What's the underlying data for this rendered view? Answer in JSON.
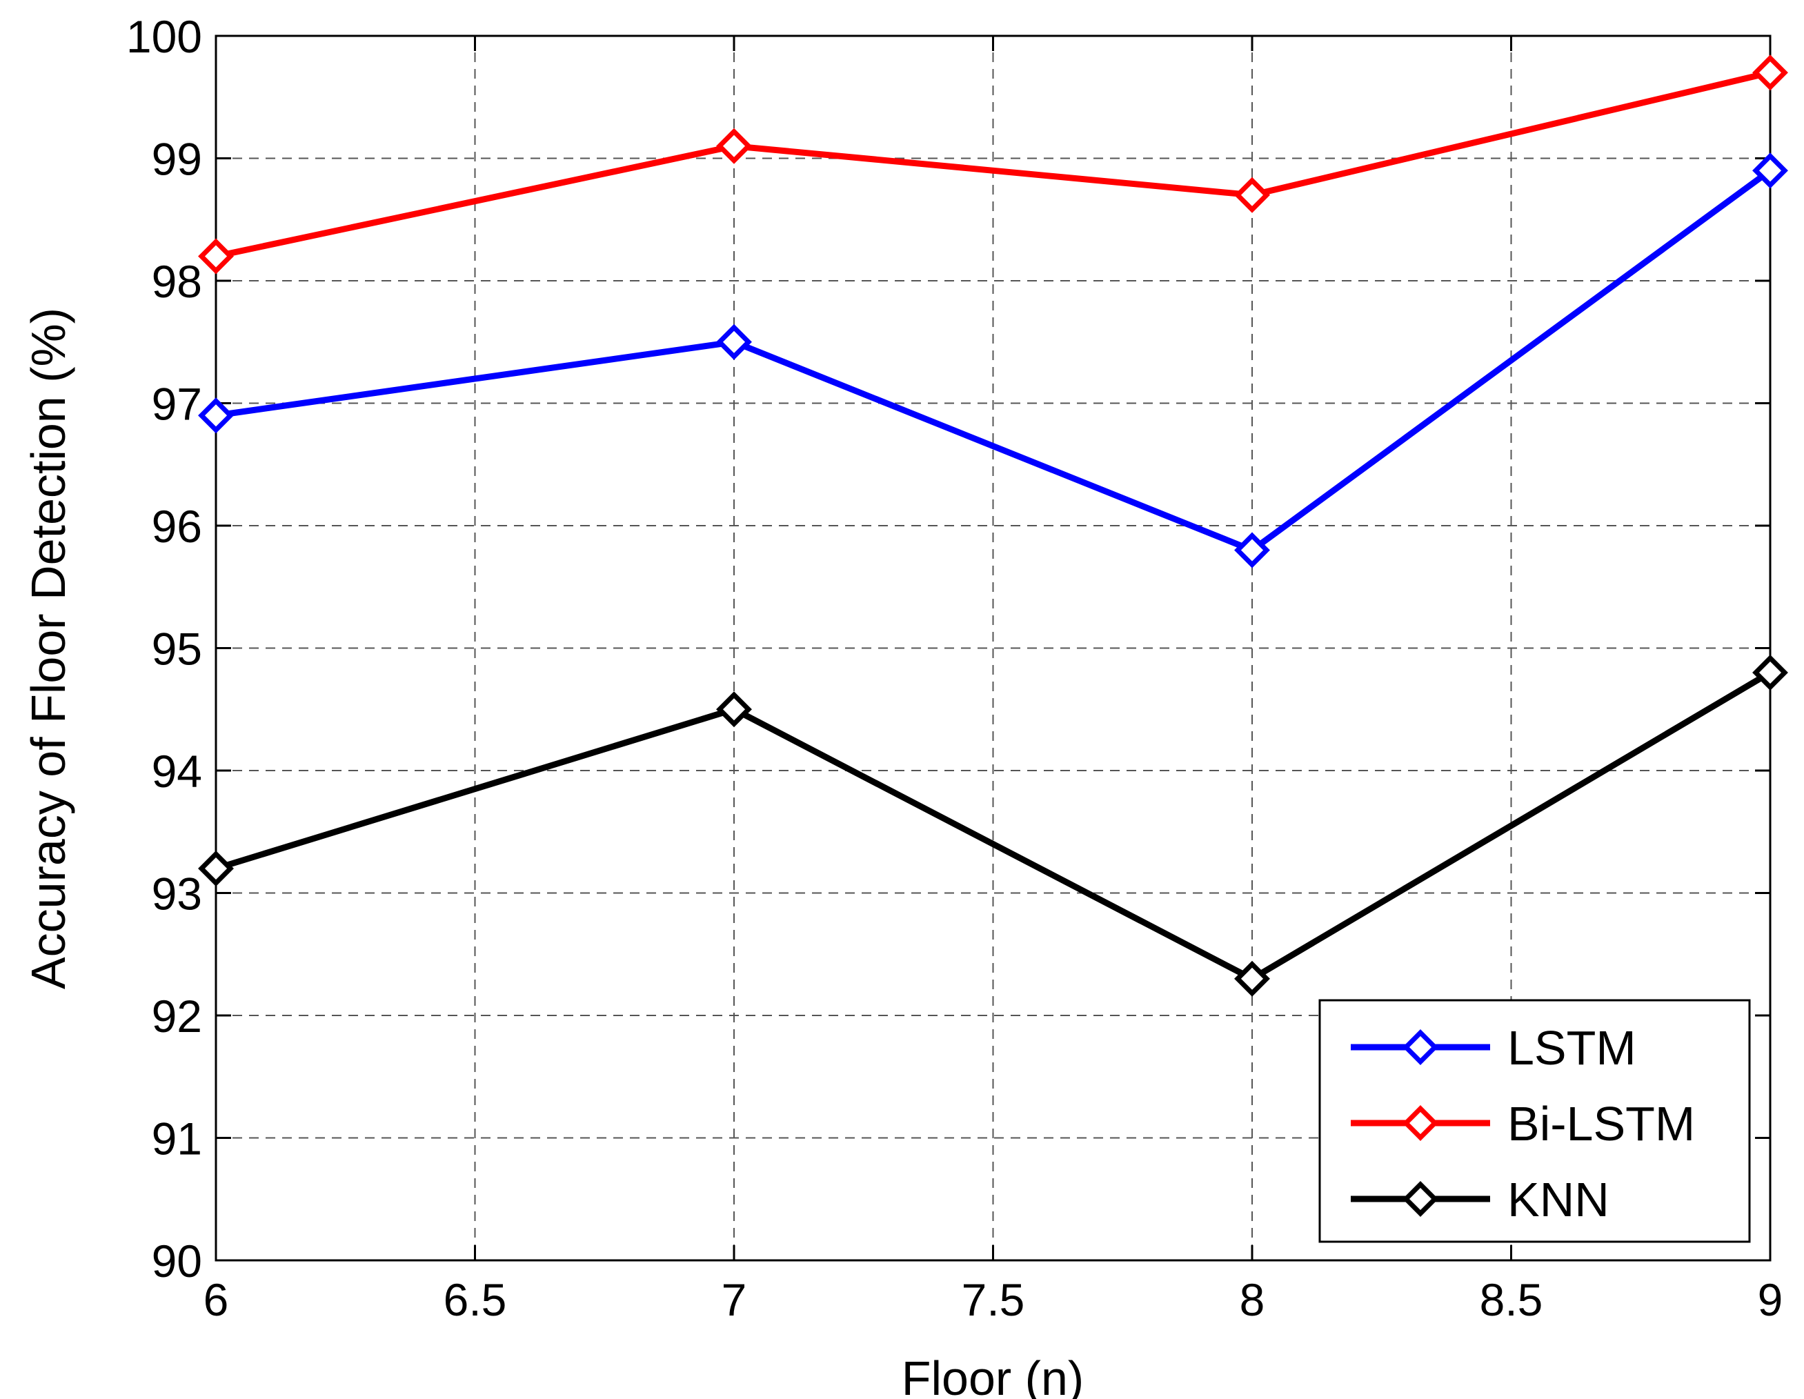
{
  "chart_data": {
    "type": "line",
    "title": "",
    "xlabel": "Floor (n)",
    "ylabel": "Accuracy of Floor Detection (%)",
    "xlim": [
      6,
      9
    ],
    "ylim": [
      90,
      100
    ],
    "xticks": [
      6,
      6.5,
      7,
      7.5,
      8,
      8.5,
      9
    ],
    "xtick_labels": [
      "6",
      "6.5",
      "7",
      "7.5",
      "8",
      "8.5",
      "9"
    ],
    "yticks": [
      90,
      91,
      92,
      93,
      94,
      95,
      96,
      97,
      98,
      99,
      100
    ],
    "ytick_labels": [
      "90",
      "91",
      "92",
      "93",
      "94",
      "95",
      "96",
      "97",
      "98",
      "99",
      "100"
    ],
    "grid": true,
    "legend_position": "bottom-right",
    "x": [
      6,
      7,
      8,
      9
    ],
    "series": [
      {
        "name": "LSTM",
        "color": "#0000ff",
        "marker": "diamond",
        "values": [
          96.9,
          97.5,
          95.8,
          98.9
        ]
      },
      {
        "name": "Bi-LSTM",
        "color": "#ff0000",
        "marker": "diamond",
        "values": [
          98.2,
          99.1,
          98.7,
          99.7
        ]
      },
      {
        "name": "KNN",
        "color": "#000000",
        "marker": "diamond",
        "values": [
          93.2,
          94.5,
          92.3,
          94.8
        ]
      }
    ]
  }
}
